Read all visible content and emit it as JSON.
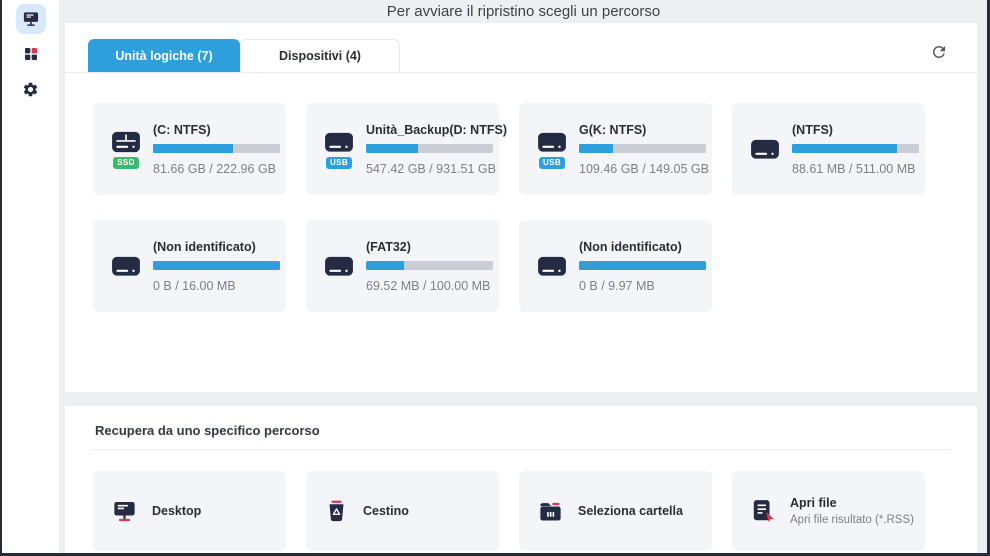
{
  "header": {
    "title": "Per avviare il ripristino scegli un percorso"
  },
  "sidebar": {
    "items": [
      {
        "icon": "monitor-icon",
        "active": true
      },
      {
        "icon": "apps-grid-icon",
        "active": false
      },
      {
        "icon": "gear-icon",
        "active": false
      }
    ]
  },
  "tabs": [
    {
      "label": "Unità logiche (7)",
      "active": true
    },
    {
      "label": "Dispositivi (4)",
      "active": false
    }
  ],
  "toolbar": {
    "refresh_icon": "refresh-icon"
  },
  "drives": [
    {
      "title": "(C: NTFS)",
      "size": "81.66 GB / 222.96 GB",
      "badge": "SSD",
      "bar_percent": 63
    },
    {
      "title": "Unità_Backup(D: NTFS)",
      "size": "547.42 GB / 931.51 GB",
      "badge": "USB",
      "bar_percent": 41
    },
    {
      "title": "G(K: NTFS)",
      "size": "109.46 GB / 149.05 GB",
      "badge": "USB",
      "bar_percent": 27
    },
    {
      "title": "(NTFS)",
      "size": "88.61 MB / 511.00 MB",
      "badge": "",
      "bar_percent": 83
    },
    {
      "title": "(Non identificato)",
      "size": "0 B / 16.00 MB",
      "badge": "",
      "bar_percent": 100
    },
    {
      "title": "(FAT32)",
      "size": "69.52 MB / 100.00 MB",
      "badge": "",
      "bar_percent": 30
    },
    {
      "title": "(Non identificato)",
      "size": "0 B / 9.97 MB",
      "badge": "",
      "bar_percent": 100
    }
  ],
  "recover": {
    "title": "Recupera da uno specifico percorso",
    "items": [
      {
        "label": "Desktop",
        "icon": "desktop-icon"
      },
      {
        "label": "Cestino",
        "icon": "trash-icon"
      },
      {
        "label": "Seleziona cartella",
        "icon": "folder-icon"
      },
      {
        "label": "Apri file",
        "sublabel": "Apri file risultato (*.RSS)",
        "icon": "open-file-icon"
      }
    ]
  },
  "colors": {
    "accent": "#2d9fdd",
    "ssd_badge": "#3cb96d",
    "usb_badge": "#2d9fdd",
    "red_accent": "#d8374d",
    "icon_navy": "#262b44",
    "bar_track": "#caced4"
  }
}
